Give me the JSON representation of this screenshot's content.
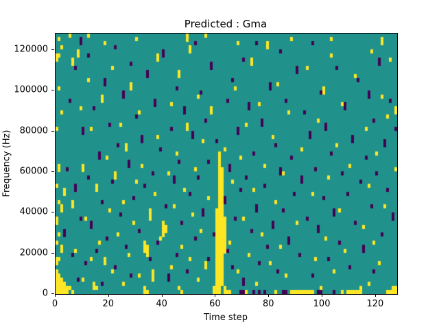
{
  "chart_data": {
    "type": "heatmap",
    "title": "Predicted : Gma",
    "xlabel": "Time step",
    "ylabel": "Frequency (Hz)",
    "x_range": [
      0,
      128
    ],
    "y_range": [
      0,
      128000
    ],
    "x_ticks": [
      0,
      20,
      40,
      60,
      80,
      100,
      120
    ],
    "y_ticks": [
      0,
      20000,
      40000,
      60000,
      80000,
      100000,
      120000
    ],
    "grid": {
      "cols": 128,
      "rows": 64
    },
    "legend": "none",
    "colors": {
      "background": "#21918c",
      "high": "#fde725",
      "low": "#440154"
    },
    "yellow_runs": [
      [
        0,
        0,
        5
      ],
      [
        1,
        0,
        4
      ],
      [
        2,
        0,
        3
      ],
      [
        3,
        0,
        2
      ],
      [
        4,
        0,
        1
      ],
      [
        0,
        7,
        8
      ],
      [
        1,
        8,
        8
      ],
      [
        0,
        12,
        12
      ],
      [
        2,
        10,
        11
      ],
      [
        1,
        14,
        14
      ],
      [
        0,
        17,
        18
      ],
      [
        2,
        20,
        21
      ],
      [
        1,
        22,
        22
      ],
      [
        0,
        26,
        26
      ],
      [
        3,
        24,
        25
      ],
      [
        1,
        30,
        31
      ],
      [
        0,
        40,
        40
      ],
      [
        2,
        44,
        44
      ],
      [
        1,
        50,
        50
      ],
      [
        0,
        57,
        58
      ],
      [
        2,
        60,
        60
      ],
      [
        1,
        62,
        62
      ],
      [
        5,
        1,
        1
      ],
      [
        6,
        0,
        0
      ],
      [
        6,
        21,
        22
      ],
      [
        7,
        10,
        10
      ],
      [
        8,
        58,
        59
      ],
      [
        9,
        45,
        45
      ],
      [
        10,
        3,
        3
      ],
      [
        10,
        30,
        31
      ],
      [
        11,
        18,
        18
      ],
      [
        12,
        52,
        52
      ],
      [
        12,
        63,
        63
      ],
      [
        13,
        8,
        8
      ],
      [
        13,
        40,
        40
      ],
      [
        14,
        1,
        2
      ],
      [
        15,
        1,
        1
      ],
      [
        15,
        25,
        26
      ],
      [
        16,
        12,
        12
      ],
      [
        17,
        47,
        48
      ],
      [
        18,
        7,
        8
      ],
      [
        18,
        61,
        61
      ],
      [
        19,
        33,
        33
      ],
      [
        20,
        20,
        20
      ],
      [
        21,
        5,
        5
      ],
      [
        21,
        55,
        55
      ],
      [
        22,
        28,
        29
      ],
      [
        23,
        14,
        14
      ],
      [
        24,
        41,
        41
      ],
      [
        25,
        2,
        2
      ],
      [
        25,
        22,
        22
      ],
      [
        26,
        35,
        36
      ],
      [
        27,
        9,
        9
      ],
      [
        28,
        50,
        51
      ],
      [
        29,
        17,
        17
      ],
      [
        30,
        27,
        27
      ],
      [
        30,
        62,
        62
      ],
      [
        31,
        4,
        4
      ],
      [
        31,
        44,
        44
      ],
      [
        32,
        31,
        31
      ],
      [
        33,
        0,
        1
      ],
      [
        33,
        10,
        12
      ],
      [
        34,
        9,
        11
      ],
      [
        35,
        18,
        20
      ],
      [
        34,
        0,
        0
      ],
      [
        36,
        3,
        5
      ],
      [
        37,
        24,
        24
      ],
      [
        38,
        38,
        38
      ],
      [
        38,
        57,
        58
      ],
      [
        39,
        13,
        13
      ],
      [
        40,
        14,
        17
      ],
      [
        41,
        15,
        16
      ],
      [
        42,
        29,
        29
      ],
      [
        43,
        6,
        6
      ],
      [
        43,
        46,
        46
      ],
      [
        44,
        21,
        21
      ],
      [
        45,
        34,
        34
      ],
      [
        46,
        1,
        1
      ],
      [
        46,
        53,
        54
      ],
      [
        47,
        0,
        0
      ],
      [
        47,
        11,
        11
      ],
      [
        48,
        25,
        25
      ],
      [
        49,
        40,
        41
      ],
      [
        49,
        62,
        63
      ],
      [
        50,
        8,
        8
      ],
      [
        50,
        59,
        60
      ],
      [
        51,
        19,
        19
      ],
      [
        52,
        30,
        30
      ],
      [
        53,
        3,
        3
      ],
      [
        53,
        48,
        48
      ],
      [
        54,
        15,
        15
      ],
      [
        55,
        37,
        37
      ],
      [
        56,
        6,
        7
      ],
      [
        56,
        63,
        63
      ],
      [
        57,
        23,
        23
      ],
      [
        58,
        44,
        45
      ],
      [
        59,
        0,
        1
      ],
      [
        60,
        0,
        20
      ],
      [
        61,
        0,
        34
      ],
      [
        62,
        2,
        30
      ],
      [
        63,
        0,
        1
      ],
      [
        63,
        10,
        18
      ],
      [
        63,
        35,
        35
      ],
      [
        64,
        0,
        0
      ],
      [
        65,
        0,
        0
      ],
      [
        65,
        12,
        12
      ],
      [
        66,
        27,
        27
      ],
      [
        67,
        50,
        50
      ],
      [
        68,
        5,
        5
      ],
      [
        68,
        61,
        61
      ],
      [
        69,
        33,
        33
      ],
      [
        70,
        18,
        18
      ],
      [
        71,
        0,
        0
      ],
      [
        71,
        41,
        41
      ],
      [
        72,
        9,
        9
      ],
      [
        73,
        56,
        57
      ],
      [
        74,
        25,
        25
      ],
      [
        75,
        2,
        2
      ],
      [
        76,
        46,
        46
      ],
      [
        77,
        14,
        14
      ],
      [
        78,
        31,
        31
      ],
      [
        79,
        60,
        61
      ],
      [
        80,
        7,
        7
      ],
      [
        81,
        38,
        38
      ],
      [
        82,
        0,
        0
      ],
      [
        82,
        22,
        22
      ],
      [
        83,
        51,
        51
      ],
      [
        84,
        11,
        11
      ],
      [
        85,
        29,
        29
      ],
      [
        86,
        4,
        4
      ],
      [
        87,
        44,
        44
      ],
      [
        88,
        0,
        0
      ],
      [
        88,
        62,
        62
      ],
      [
        89,
        0,
        0
      ],
      [
        90,
        0,
        0
      ],
      [
        90,
        17,
        17
      ],
      [
        91,
        0,
        0
      ],
      [
        92,
        0,
        0
      ],
      [
        92,
        35,
        35
      ],
      [
        93,
        0,
        0
      ],
      [
        94,
        0,
        0
      ],
      [
        94,
        55,
        55
      ],
      [
        95,
        0,
        0
      ],
      [
        96,
        0,
        0
      ],
      [
        96,
        24,
        24
      ],
      [
        97,
        8,
        8
      ],
      [
        98,
        42,
        42
      ],
      [
        99,
        1,
        1
      ],
      [
        100,
        49,
        50
      ],
      [
        101,
        13,
        13
      ],
      [
        102,
        28,
        28
      ],
      [
        103,
        58,
        58
      ],
      [
        103,
        62,
        62
      ],
      [
        104,
        5,
        5
      ],
      [
        105,
        36,
        36
      ],
      [
        106,
        20,
        20
      ],
      [
        107,
        0,
        0
      ],
      [
        107,
        46,
        46
      ],
      [
        108,
        10,
        10
      ],
      [
        109,
        0,
        0
      ],
      [
        110,
        0,
        0
      ],
      [
        110,
        31,
        31
      ],
      [
        111,
        0,
        0
      ],
      [
        112,
        0,
        0
      ],
      [
        112,
        53,
        53
      ],
      [
        113,
        0,
        0
      ],
      [
        114,
        0,
        1
      ],
      [
        115,
        16,
        16
      ],
      [
        116,
        40,
        40
      ],
      [
        117,
        2,
        2
      ],
      [
        117,
        26,
        26
      ],
      [
        118,
        59,
        59
      ],
      [
        119,
        12,
        12
      ],
      [
        120,
        34,
        34
      ],
      [
        121,
        7,
        7
      ],
      [
        122,
        48,
        48
      ],
      [
        122,
        61,
        62
      ],
      [
        123,
        21,
        21
      ],
      [
        124,
        0,
        0
      ],
      [
        124,
        43,
        43
      ],
      [
        125,
        0,
        0
      ],
      [
        125,
        57,
        57
      ],
      [
        126,
        0,
        1
      ],
      [
        127,
        0,
        1
      ],
      [
        127,
        30,
        30
      ],
      [
        127,
        44,
        45
      ],
      [
        5,
        63,
        63
      ],
      [
        6,
        56,
        57
      ],
      [
        1,
        58,
        58
      ]
    ],
    "dark_runs": [
      [
        3,
        14,
        15
      ],
      [
        4,
        30,
        30
      ],
      [
        5,
        47,
        47
      ],
      [
        6,
        9,
        9
      ],
      [
        7,
        25,
        26
      ],
      [
        7,
        55,
        55
      ],
      [
        8,
        3,
        3
      ],
      [
        9,
        18,
        18
      ],
      [
        9,
        61,
        62
      ],
      [
        10,
        39,
        40
      ],
      [
        11,
        7,
        7
      ],
      [
        12,
        28,
        28
      ],
      [
        12,
        58,
        58
      ],
      [
        13,
        16,
        17
      ],
      [
        14,
        45,
        45
      ],
      [
        15,
        10,
        10
      ],
      [
        16,
        33,
        34
      ],
      [
        17,
        2,
        2
      ],
      [
        17,
        22,
        22
      ],
      [
        18,
        51,
        52
      ],
      [
        19,
        13,
        13
      ],
      [
        20,
        41,
        41
      ],
      [
        21,
        27,
        27
      ],
      [
        22,
        6,
        6
      ],
      [
        22,
        60,
        60
      ],
      [
        23,
        36,
        36
      ],
      [
        24,
        19,
        19
      ],
      [
        25,
        48,
        49
      ],
      [
        26,
        11,
        11
      ],
      [
        27,
        31,
        32
      ],
      [
        28,
        4,
        4
      ],
      [
        28,
        56,
        56
      ],
      [
        29,
        23,
        23
      ],
      [
        30,
        43,
        43
      ],
      [
        31,
        15,
        15
      ],
      [
        32,
        37,
        38
      ],
      [
        33,
        26,
        26
      ],
      [
        34,
        53,
        54
      ],
      [
        35,
        8,
        8
      ],
      [
        36,
        29,
        29
      ],
      [
        37,
        46,
        47
      ],
      [
        38,
        12,
        12
      ],
      [
        39,
        35,
        35
      ],
      [
        40,
        58,
        59
      ],
      [
        41,
        21,
        21
      ],
      [
        42,
        3,
        4
      ],
      [
        43,
        40,
        40
      ],
      [
        44,
        27,
        28
      ],
      [
        45,
        9,
        9
      ],
      [
        45,
        50,
        50
      ],
      [
        46,
        32,
        32
      ],
      [
        47,
        17,
        17
      ],
      [
        48,
        44,
        45
      ],
      [
        49,
        5,
        5
      ],
      [
        50,
        24,
        24
      ],
      [
        51,
        38,
        39
      ],
      [
        52,
        13,
        13
      ],
      [
        52,
        61,
        61
      ],
      [
        53,
        28,
        28
      ],
      [
        54,
        49,
        49
      ],
      [
        55,
        19,
        20
      ],
      [
        56,
        42,
        42
      ],
      [
        57,
        8,
        8
      ],
      [
        57,
        32,
        32
      ],
      [
        58,
        55,
        56
      ],
      [
        59,
        14,
        14
      ],
      [
        60,
        37,
        37
      ],
      [
        63,
        22,
        23
      ],
      [
        64,
        47,
        47
      ],
      [
        64,
        10,
        10
      ],
      [
        65,
        30,
        31
      ],
      [
        66,
        6,
        6
      ],
      [
        66,
        52,
        52
      ],
      [
        67,
        18,
        18
      ],
      [
        68,
        39,
        40
      ],
      [
        69,
        0,
        0
      ],
      [
        69,
        25,
        25
      ],
      [
        70,
        0,
        0
      ],
      [
        70,
        2,
        3
      ],
      [
        70,
        57,
        57
      ],
      [
        71,
        28,
        28
      ],
      [
        72,
        45,
        46
      ],
      [
        73,
        15,
        15
      ],
      [
        74,
        0,
        0
      ],
      [
        74,
        34,
        34
      ],
      [
        75,
        20,
        21
      ],
      [
        75,
        61,
        61
      ],
      [
        76,
        0,
        0
      ],
      [
        76,
        7,
        7
      ],
      [
        77,
        41,
        42
      ],
      [
        78,
        0,
        0
      ],
      [
        78,
        26,
        26
      ],
      [
        79,
        11,
        11
      ],
      [
        80,
        50,
        51
      ],
      [
        81,
        16,
        17
      ],
      [
        82,
        36,
        36
      ],
      [
        83,
        5,
        5
      ],
      [
        84,
        29,
        30
      ],
      [
        84,
        59,
        59
      ],
      [
        85,
        0,
        0
      ],
      [
        85,
        20,
        20
      ],
      [
        86,
        0,
        0
      ],
      [
        86,
        47,
        47
      ],
      [
        87,
        12,
        13
      ],
      [
        88,
        33,
        33
      ],
      [
        89,
        24,
        24
      ],
      [
        90,
        54,
        55
      ],
      [
        91,
        9,
        9
      ],
      [
        92,
        27,
        28
      ],
      [
        93,
        44,
        44
      ],
      [
        94,
        18,
        18
      ],
      [
        95,
        38,
        39
      ],
      [
        96,
        4,
        4
      ],
      [
        96,
        61,
        61
      ],
      [
        97,
        30,
        30
      ],
      [
        98,
        0,
        0
      ],
      [
        98,
        15,
        16
      ],
      [
        99,
        0,
        0
      ],
      [
        99,
        49,
        49
      ],
      [
        100,
        23,
        23
      ],
      [
        101,
        40,
        41
      ],
      [
        102,
        8,
        8
      ],
      [
        103,
        34,
        34
      ],
      [
        104,
        0,
        0
      ],
      [
        104,
        19,
        20
      ],
      [
        105,
        55,
        55
      ],
      [
        106,
        12,
        12
      ],
      [
        107,
        29,
        29
      ],
      [
        108,
        45,
        46
      ],
      [
        109,
        24,
        24
      ],
      [
        110,
        6,
        6
      ],
      [
        111,
        37,
        38
      ],
      [
        112,
        17,
        17
      ],
      [
        113,
        52,
        52
      ],
      [
        114,
        27,
        27
      ],
      [
        115,
        10,
        11
      ],
      [
        116,
        33,
        33
      ],
      [
        117,
        48,
        49
      ],
      [
        118,
        21,
        21
      ],
      [
        119,
        5,
        5
      ],
      [
        119,
        42,
        42
      ],
      [
        120,
        29,
        29
      ],
      [
        121,
        56,
        57
      ],
      [
        122,
        14,
        14
      ],
      [
        123,
        36,
        37
      ],
      [
        124,
        25,
        25
      ],
      [
        125,
        47,
        47
      ],
      [
        126,
        18,
        19
      ],
      [
        127,
        40,
        40
      ]
    ]
  }
}
